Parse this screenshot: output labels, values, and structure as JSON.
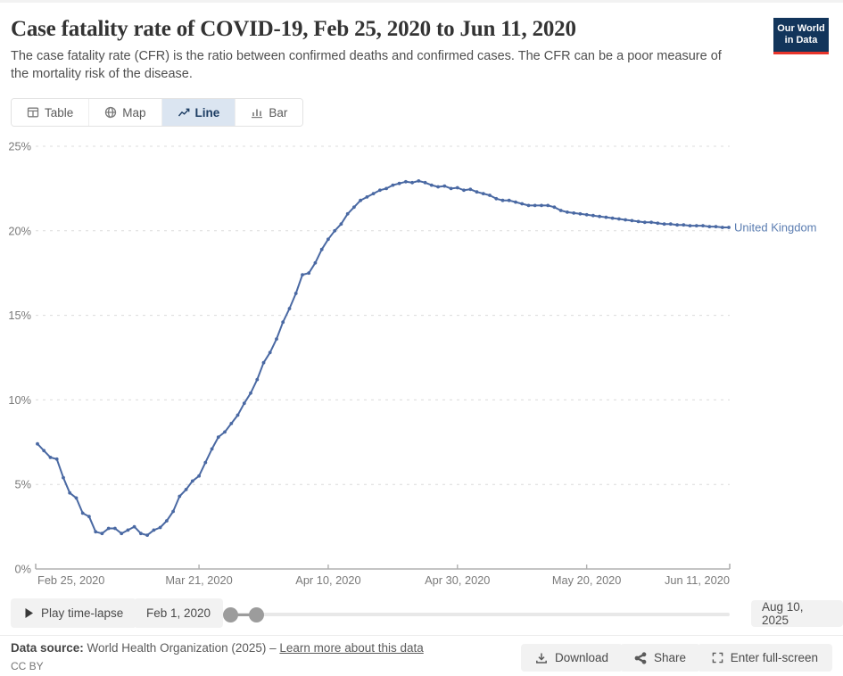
{
  "header": {
    "title": "Case fatality rate of COVID-19, Feb 25, 2020 to Jun 11, 2020",
    "subtitle": "The case fatality rate (CFR) is the ratio between confirmed deaths and confirmed cases. The CFR can be a poor measure of the mortality risk of the disease.",
    "logo_line1": "Our World",
    "logo_line2": "in Data",
    "logo_bg": "#12355b",
    "logo_accent": "#e8352b"
  },
  "tabs": {
    "items": [
      {
        "id": "table",
        "label": "Table",
        "active": false
      },
      {
        "id": "map",
        "label": "Map",
        "active": false
      },
      {
        "id": "line",
        "label": "Line",
        "active": true
      },
      {
        "id": "bar",
        "label": "Bar",
        "active": false
      }
    ],
    "active_text_color": "#1d3d63",
    "active_bg_color": "#dbe5f1"
  },
  "chart_data": {
    "type": "line",
    "title": "Case fatality rate of COVID-19, Feb 25, 2020 to Jun 11, 2020",
    "ylabel": "",
    "xlabel": "",
    "ylim": [
      0,
      25
    ],
    "grid": "dashed-horizontal",
    "legend_position": "end-of-line-label",
    "yticks": [
      {
        "value": 0,
        "label": "0%"
      },
      {
        "value": 5,
        "label": "5%"
      },
      {
        "value": 10,
        "label": "10%"
      },
      {
        "value": 15,
        "label": "15%"
      },
      {
        "value": 20,
        "label": "20%"
      },
      {
        "value": 25,
        "label": "25%"
      }
    ],
    "xticks": [
      {
        "day": 0,
        "label": "Feb 25, 2020",
        "anchor": "start"
      },
      {
        "day": 25,
        "label": "Mar 21, 2020",
        "anchor": "middle"
      },
      {
        "day": 45,
        "label": "Apr 10, 2020",
        "anchor": "middle"
      },
      {
        "day": 65,
        "label": "Apr 30, 2020",
        "anchor": "middle"
      },
      {
        "day": 85,
        "label": "May 20, 2020",
        "anchor": "middle"
      },
      {
        "day": 107,
        "label": "Jun 11, 2020",
        "anchor": "end"
      }
    ],
    "series": [
      {
        "name": "United Kingdom",
        "color": "#4a69a3",
        "label_color": "#5b7db1",
        "start_date": "Feb 25, 2020",
        "end_date": "Jun 11, 2020",
        "unit": "%",
        "values": [
          7.4,
          7.0,
          6.6,
          6.5,
          5.4,
          4.5,
          4.2,
          3.3,
          3.1,
          2.2,
          2.1,
          2.4,
          2.4,
          2.1,
          2.3,
          2.5,
          2.1,
          2.0,
          2.3,
          2.45,
          2.85,
          3.4,
          4.3,
          4.7,
          5.2,
          5.5,
          6.3,
          7.1,
          7.8,
          8.1,
          8.6,
          9.1,
          9.8,
          10.4,
          11.2,
          12.2,
          12.8,
          13.6,
          14.6,
          15.4,
          16.3,
          17.4,
          17.5,
          18.1,
          18.9,
          19.5,
          20.0,
          20.4,
          21.0,
          21.4,
          21.8,
          22.0,
          22.2,
          22.4,
          22.5,
          22.7,
          22.8,
          22.9,
          22.85,
          22.95,
          22.85,
          22.7,
          22.6,
          22.65,
          22.5,
          22.55,
          22.4,
          22.45,
          22.3,
          22.2,
          22.1,
          21.9,
          21.8,
          21.8,
          21.7,
          21.6,
          21.5,
          21.5,
          21.5,
          21.5,
          21.4,
          21.2,
          21.1,
          21.05,
          21.0,
          20.95,
          20.9,
          20.85,
          20.8,
          20.75,
          20.7,
          20.65,
          20.6,
          20.55,
          20.5,
          20.5,
          20.45,
          20.4,
          20.4,
          20.35,
          20.35,
          20.3,
          20.3,
          20.3,
          20.25,
          20.25,
          20.2,
          20.2
        ]
      }
    ],
    "axis_color": "#b0b0b0",
    "grid_color": "#dcdcdc",
    "tick_label_color": "#7a7a7a"
  },
  "timeline": {
    "play_label": "Play time-lapse",
    "start_label": "Feb 1, 2020",
    "end_label": "Aug 10, 2025"
  },
  "footer": {
    "source_label": "Data source:",
    "source_text": " World Health Organization (2025) – ",
    "link_text": "Learn more about this data",
    "license": "CC BY"
  },
  "actions": {
    "download": "Download",
    "share": "Share",
    "fullscreen": "Enter full-screen"
  }
}
